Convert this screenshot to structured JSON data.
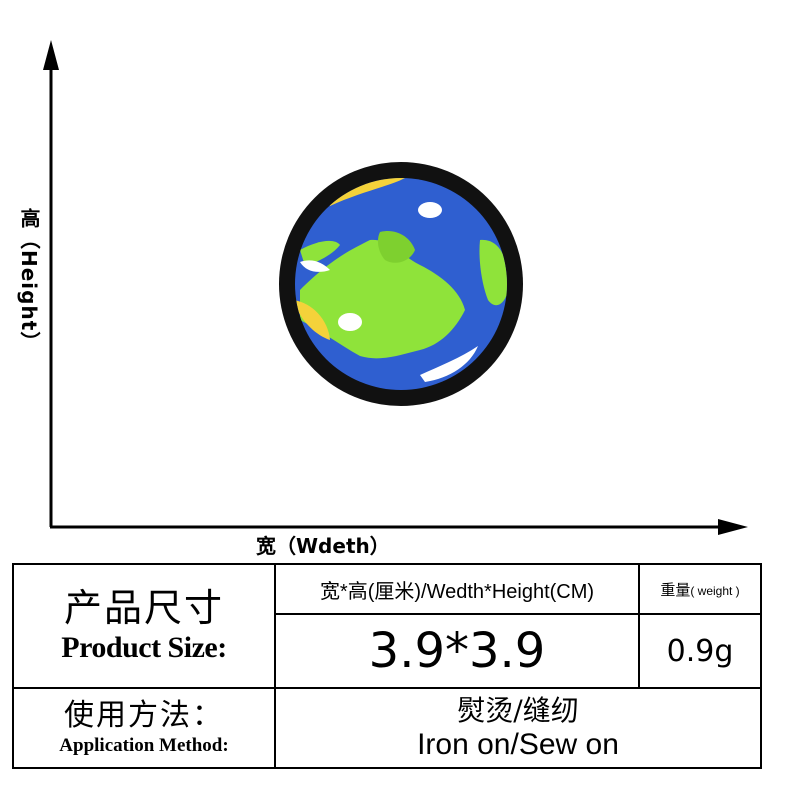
{
  "labels": {
    "height_cn": "高",
    "height_en": "（Height）",
    "width_label": "宽（Wdeth）"
  },
  "table": {
    "title_cn": "产品尺寸",
    "title_en": "Product Size:",
    "size_header": "宽*高(厘米)/Wedth*Height(CM)",
    "weight_header_cn": "重量",
    "weight_header_en": "( weight )",
    "size_value": "3.9*3.9",
    "weight_value": "0.9g",
    "method_cn": "使用方法：",
    "method_en": "Application Method:",
    "method_value_cn": "熨烫/缝纫",
    "method_value_en": "Iron on/Sew on"
  },
  "colors": {
    "ocean": "#2f5fd0",
    "land": "#8fe33a",
    "highlight": "#f4d23a",
    "border": "#111111"
  },
  "icons": [
    "earth-patch-icon"
  ]
}
